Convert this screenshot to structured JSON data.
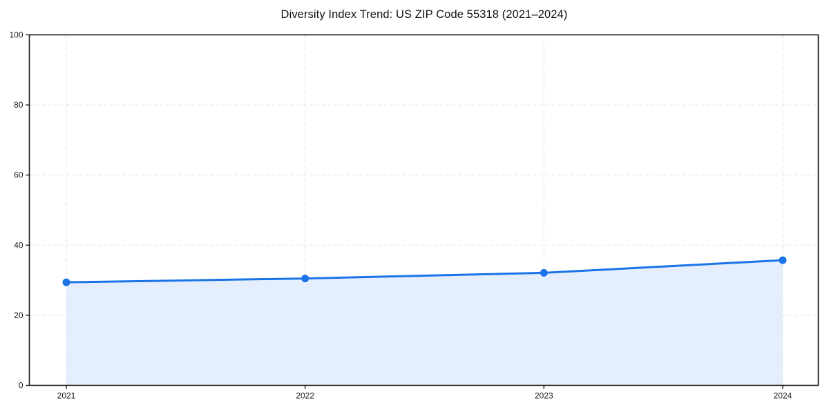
{
  "chart_data": {
    "type": "area",
    "title": "Diversity Index Trend: US ZIP Code 55318 (2021–2024)",
    "x": [
      "2021",
      "2022",
      "2023",
      "2024"
    ],
    "series": [
      {
        "name": "Diversity Index",
        "values": [
          29.4,
          30.5,
          32.1,
          35.7
        ]
      }
    ],
    "xlabel": "",
    "ylabel": "",
    "ylim": [
      0,
      100
    ],
    "yticks": [
      0,
      20,
      40,
      60,
      80,
      100
    ],
    "grid": true,
    "grid_style": "dashed",
    "legend": "none",
    "marker": "circle",
    "colors": {
      "line": "#1a73e8",
      "marker": "#1a73e8",
      "fill": "#e4eefc",
      "grid": "#e2e2e2",
      "axis": "#1a1a1a",
      "text": "#1a1a1a",
      "background": "#ffffff"
    }
  }
}
